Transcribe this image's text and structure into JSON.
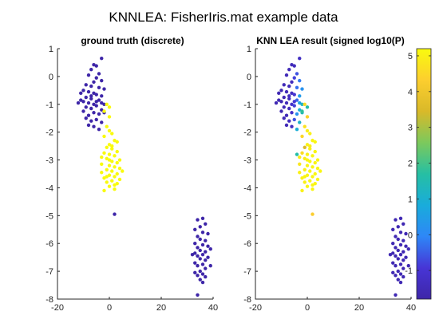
{
  "figure_title": "KNNLEA: FisherIris.mat example data",
  "colors": {
    "low": "#3e26a8",
    "high": "#f9fb0e"
  },
  "chart_data": [
    {
      "type": "scatter",
      "title": "ground truth (discrete)",
      "xlim": [
        -20,
        40
      ],
      "ylim": [
        -8,
        1
      ],
      "xticks": [
        -20,
        0,
        20,
        40
      ],
      "yticks": [
        -8,
        -7,
        -6,
        -5,
        -4,
        -3,
        -2,
        -1,
        0,
        1
      ],
      "xlabel": "",
      "ylabel": "",
      "grid": false,
      "series": [
        {
          "color": "#3e26a8",
          "points": [
            [
              -6,
              0.42
            ],
            [
              -5,
              0.38
            ],
            [
              -3,
              0.65
            ],
            [
              -7,
              0.25
            ],
            [
              -4,
              0.1
            ],
            [
              -8,
              0.05
            ],
            [
              -5,
              -0.05
            ],
            [
              -3,
              -0.15
            ],
            [
              -6,
              -0.2
            ],
            [
              -9,
              -0.3
            ],
            [
              -7,
              -0.35
            ],
            [
              -4,
              -0.4
            ],
            [
              -2,
              -0.45
            ],
            [
              -10,
              -0.5
            ],
            [
              -8,
              -0.55
            ],
            [
              -6,
              -0.6
            ],
            [
              -5,
              -0.65
            ],
            [
              -3,
              -0.7
            ],
            [
              -9,
              -0.75
            ],
            [
              -7,
              -0.8
            ],
            [
              -4,
              -0.85
            ],
            [
              -11,
              -0.85
            ],
            [
              -10,
              -0.9
            ],
            [
              -8,
              -0.95
            ],
            [
              -6,
              -1.0
            ],
            [
              -2,
              -1.0
            ],
            [
              -5,
              -1.05
            ],
            [
              -9,
              -1.1
            ],
            [
              -7,
              -1.15
            ],
            [
              -3,
              -1.2
            ],
            [
              -10,
              -1.25
            ],
            [
              -6,
              -1.3
            ],
            [
              -4,
              -1.35
            ],
            [
              -8,
              -1.4
            ],
            [
              -9,
              -1.5
            ],
            [
              -5,
              -1.55
            ],
            [
              -7,
              -1.6
            ],
            [
              -3,
              -1.65
            ],
            [
              -8,
              -1.75
            ],
            [
              -6,
              -1.8
            ],
            [
              -4,
              -1.9
            ],
            [
              -7,
              -0.7
            ],
            [
              -5,
              -0.9
            ],
            [
              -11,
              -0.6
            ],
            [
              -12,
              -0.95
            ],
            [
              -2,
              -1.3
            ],
            [
              -3,
              -0.95
            ],
            [
              2,
              -4.95
            ],
            [
              34,
              -5.15
            ],
            [
              36,
              -5.1
            ],
            [
              37,
              -5.3
            ],
            [
              35,
              -5.4
            ],
            [
              33,
              -5.5
            ],
            [
              36,
              -5.6
            ],
            [
              38,
              -5.65
            ],
            [
              34,
              -5.75
            ],
            [
              35,
              -5.85
            ],
            [
              37,
              -5.9
            ],
            [
              33,
              -6.0
            ],
            [
              36,
              -6.05
            ],
            [
              38,
              -6.1
            ],
            [
              34,
              -6.15
            ],
            [
              35,
              -6.25
            ],
            [
              37,
              -6.3
            ],
            [
              33,
              -6.35
            ],
            [
              36,
              -6.4
            ],
            [
              34,
              -6.45
            ],
            [
              38,
              -6.5
            ],
            [
              35,
              -6.55
            ],
            [
              37,
              -6.6
            ],
            [
              33,
              -6.7
            ],
            [
              36,
              -6.75
            ],
            [
              34,
              -6.8
            ],
            [
              37,
              -6.9
            ],
            [
              35,
              -7.0
            ],
            [
              33,
              -7.05
            ],
            [
              36,
              -7.1
            ],
            [
              34,
              -7.15
            ],
            [
              37,
              -7.2
            ],
            [
              35,
              -7.3
            ],
            [
              36,
              -7.4
            ],
            [
              34,
              -7.85
            ],
            [
              39,
              -6.2
            ],
            [
              32,
              -6.4
            ],
            [
              39,
              -6.8
            ]
          ]
        },
        {
          "color": "#f9fb0e",
          "points": [
            [
              -1,
              -1.0
            ],
            [
              0,
              -1.1
            ],
            [
              -2,
              -1.25
            ],
            [
              0,
              -1.45
            ],
            [
              -1,
              -1.8
            ],
            [
              0,
              -1.95
            ],
            [
              1,
              -2.05
            ],
            [
              -2,
              -2.15
            ],
            [
              2,
              -2.3
            ],
            [
              0,
              -2.45
            ],
            [
              -1,
              -2.55
            ],
            [
              1,
              -2.6
            ],
            [
              3,
              -2.7
            ],
            [
              -2,
              -2.75
            ],
            [
              0,
              -2.8
            ],
            [
              2,
              -2.85
            ],
            [
              -1,
              -2.95
            ],
            [
              1,
              -3.05
            ],
            [
              3,
              -3.1
            ],
            [
              -3,
              -3.15
            ],
            [
              0,
              -3.2
            ],
            [
              2,
              -3.25
            ],
            [
              4,
              -3.3
            ],
            [
              -1,
              -3.35
            ],
            [
              1,
              -3.4
            ],
            [
              -3,
              -3.45
            ],
            [
              3,
              -3.5
            ],
            [
              0,
              -3.55
            ],
            [
              2,
              -3.6
            ],
            [
              -2,
              -3.65
            ],
            [
              4,
              -3.7
            ],
            [
              1,
              -3.75
            ],
            [
              -1,
              -3.8
            ],
            [
              3,
              -3.85
            ],
            [
              0,
              -3.95
            ],
            [
              2,
              -4.05
            ],
            [
              -2,
              -4.1
            ],
            [
              1,
              -2.5
            ],
            [
              -3,
              -2.9
            ],
            [
              4,
              -3.0
            ],
            [
              5,
              -3.4
            ],
            [
              -1,
              -3.6
            ],
            [
              3,
              -2.35
            ],
            [
              0,
              -3.0
            ],
            [
              2,
              -3.9
            ]
          ]
        }
      ]
    },
    {
      "type": "scatter",
      "title": "KNN LEA result (signed log10(P)",
      "xlim": [
        -20,
        40
      ],
      "ylim": [
        -8,
        1
      ],
      "xticks": [
        -20,
        0,
        20,
        40
      ],
      "yticks": [
        -8,
        -7,
        -6,
        -5,
        -4,
        -3,
        -2,
        -1,
        0,
        1
      ],
      "xlabel": "",
      "ylabel": "",
      "grid": false,
      "colorbar": {
        "min": -1.8,
        "max": 5.2,
        "ticks": [
          -1,
          0,
          1,
          2,
          3,
          4,
          5
        ],
        "colormap": "parula"
      },
      "points": [
        [
          -6,
          0.42,
          -1.5
        ],
        [
          -5,
          0.38,
          -1.4
        ],
        [
          -3,
          0.65,
          -1.3
        ],
        [
          -7,
          0.25,
          -1.5
        ],
        [
          -4,
          0.1,
          -0.6
        ],
        [
          -8,
          0.05,
          -1.5
        ],
        [
          -5,
          -0.05,
          -0.8
        ],
        [
          -3,
          -0.15,
          -0.2
        ],
        [
          -6,
          -0.2,
          -1.4
        ],
        [
          -9,
          -0.3,
          -1.5
        ],
        [
          -7,
          -0.35,
          -1.5
        ],
        [
          -4,
          -0.4,
          -0.3
        ],
        [
          -2,
          -0.45,
          0.2
        ],
        [
          -10,
          -0.5,
          -1.6
        ],
        [
          -8,
          -0.55,
          -1.5
        ],
        [
          -6,
          -0.6,
          -1.3
        ],
        [
          -5,
          -0.65,
          -1.0
        ],
        [
          -3,
          -0.7,
          0.4
        ],
        [
          -9,
          -0.75,
          -1.6
        ],
        [
          -7,
          -0.8,
          -1.4
        ],
        [
          -4,
          -0.85,
          -0.4
        ],
        [
          -11,
          -0.85,
          -1.6
        ],
        [
          -10,
          -0.9,
          -1.6
        ],
        [
          -8,
          -0.95,
          -1.5
        ],
        [
          -6,
          -1.0,
          -1.2
        ],
        [
          -2,
          -1.0,
          1.2
        ],
        [
          -5,
          -1.05,
          -0.8
        ],
        [
          -9,
          -1.1,
          -1.5
        ],
        [
          -7,
          -1.15,
          -1.4
        ],
        [
          -3,
          -1.2,
          0.9
        ],
        [
          -10,
          -1.25,
          -1.6
        ],
        [
          -6,
          -1.3,
          -1.2
        ],
        [
          -4,
          -1.35,
          0.2
        ],
        [
          -8,
          -1.4,
          -1.5
        ],
        [
          -9,
          -1.5,
          -1.5
        ],
        [
          -5,
          -1.55,
          -0.6
        ],
        [
          -7,
          -1.6,
          -1.4
        ],
        [
          -3,
          -1.65,
          1.1
        ],
        [
          -8,
          -1.75,
          -1.5
        ],
        [
          -6,
          -1.8,
          -1.3
        ],
        [
          -4,
          -1.9,
          0.9
        ],
        [
          -7,
          -0.7,
          -1.4
        ],
        [
          -5,
          -0.9,
          -0.9
        ],
        [
          -11,
          -0.6,
          -1.6
        ],
        [
          -12,
          -0.95,
          -1.6
        ],
        [
          -2,
          -1.3,
          1.4
        ],
        [
          -3,
          -0.95,
          0.6
        ],
        [
          -1,
          -1.0,
          4.6
        ],
        [
          0,
          -1.1,
          1.6
        ],
        [
          -2,
          -1.25,
          1.8
        ],
        [
          0,
          -1.45,
          4.4
        ],
        [
          -1,
          -1.8,
          4.7
        ],
        [
          0,
          -1.95,
          5.0
        ],
        [
          1,
          -2.05,
          5.0
        ],
        [
          -2,
          -2.15,
          4.5
        ],
        [
          2,
          -2.3,
          5.1
        ],
        [
          0,
          -2.45,
          5.0
        ],
        [
          -1,
          -2.55,
          3.5
        ],
        [
          1,
          -2.6,
          5.0
        ],
        [
          3,
          -2.7,
          5.1
        ],
        [
          -2,
          -2.75,
          4.6
        ],
        [
          0,
          -2.8,
          5.0
        ],
        [
          2,
          -2.85,
          5.1
        ],
        [
          -1,
          -2.95,
          4.9
        ],
        [
          1,
          -3.05,
          5.1
        ],
        [
          3,
          -3.1,
          5.1
        ],
        [
          -3,
          -3.15,
          4.8
        ],
        [
          0,
          -3.2,
          5.1
        ],
        [
          2,
          -3.25,
          5.1
        ],
        [
          4,
          -3.3,
          5.1
        ],
        [
          -1,
          -3.35,
          5.0
        ],
        [
          1,
          -3.4,
          5.1
        ],
        [
          -3,
          -3.45,
          5.0
        ],
        [
          3,
          -3.5,
          5.1
        ],
        [
          0,
          -3.55,
          5.1
        ],
        [
          2,
          -3.6,
          5.1
        ],
        [
          -2,
          -3.65,
          5.0
        ],
        [
          4,
          -3.7,
          5.1
        ],
        [
          1,
          -3.75,
          5.1
        ],
        [
          -1,
          -3.8,
          5.0
        ],
        [
          3,
          -3.85,
          5.1
        ],
        [
          0,
          -3.95,
          5.1
        ],
        [
          2,
          -4.05,
          5.1
        ],
        [
          -2,
          -4.1,
          5.0
        ],
        [
          1,
          -2.5,
          4.9
        ],
        [
          -3,
          -2.9,
          4.9
        ],
        [
          4,
          -3.0,
          5.1
        ],
        [
          5,
          -3.4,
          5.1
        ],
        [
          -1,
          -3.6,
          5.1
        ],
        [
          3,
          -2.35,
          5.1
        ],
        [
          0,
          -3.0,
          5.1
        ],
        [
          2,
          -3.9,
          5.1
        ],
        [
          -4,
          -2.8,
          1.6
        ],
        [
          2,
          -4.95,
          4.3
        ],
        [
          34,
          -5.15,
          -1.6
        ],
        [
          36,
          -5.1,
          -1.6
        ],
        [
          37,
          -5.3,
          -1.6
        ],
        [
          35,
          -5.4,
          -1.6
        ],
        [
          33,
          -5.5,
          -1.6
        ],
        [
          36,
          -5.6,
          -1.6
        ],
        [
          38,
          -5.65,
          -1.6
        ],
        [
          34,
          -5.75,
          -1.6
        ],
        [
          35,
          -5.85,
          -1.6
        ],
        [
          37,
          -5.9,
          -1.6
        ],
        [
          33,
          -6.0,
          -1.6
        ],
        [
          36,
          -6.05,
          -1.6
        ],
        [
          38,
          -6.1,
          -1.6
        ],
        [
          34,
          -6.15,
          -1.6
        ],
        [
          35,
          -6.25,
          -1.6
        ],
        [
          37,
          -6.3,
          -1.6
        ],
        [
          33,
          -6.35,
          -1.6
        ],
        [
          36,
          -6.4,
          -1.6
        ],
        [
          34,
          -6.45,
          -1.6
        ],
        [
          38,
          -6.5,
          -1.6
        ],
        [
          35,
          -6.55,
          -1.6
        ],
        [
          37,
          -6.6,
          -1.6
        ],
        [
          33,
          -6.7,
          -1.6
        ],
        [
          36,
          -6.75,
          -1.6
        ],
        [
          34,
          -6.8,
          -1.6
        ],
        [
          37,
          -6.9,
          -1.6
        ],
        [
          35,
          -7.0,
          -1.6
        ],
        [
          33,
          -7.05,
          -1.6
        ],
        [
          36,
          -7.1,
          -1.6
        ],
        [
          34,
          -7.15,
          -1.6
        ],
        [
          37,
          -7.2,
          -1.6
        ],
        [
          35,
          -7.3,
          -1.6
        ],
        [
          36,
          -7.4,
          -1.6
        ],
        [
          34,
          -7.85,
          -1.6
        ],
        [
          39,
          -6.2,
          -1.6
        ],
        [
          32,
          -6.4,
          -1.6
        ],
        [
          39,
          -6.8,
          -1.6
        ]
      ]
    }
  ]
}
